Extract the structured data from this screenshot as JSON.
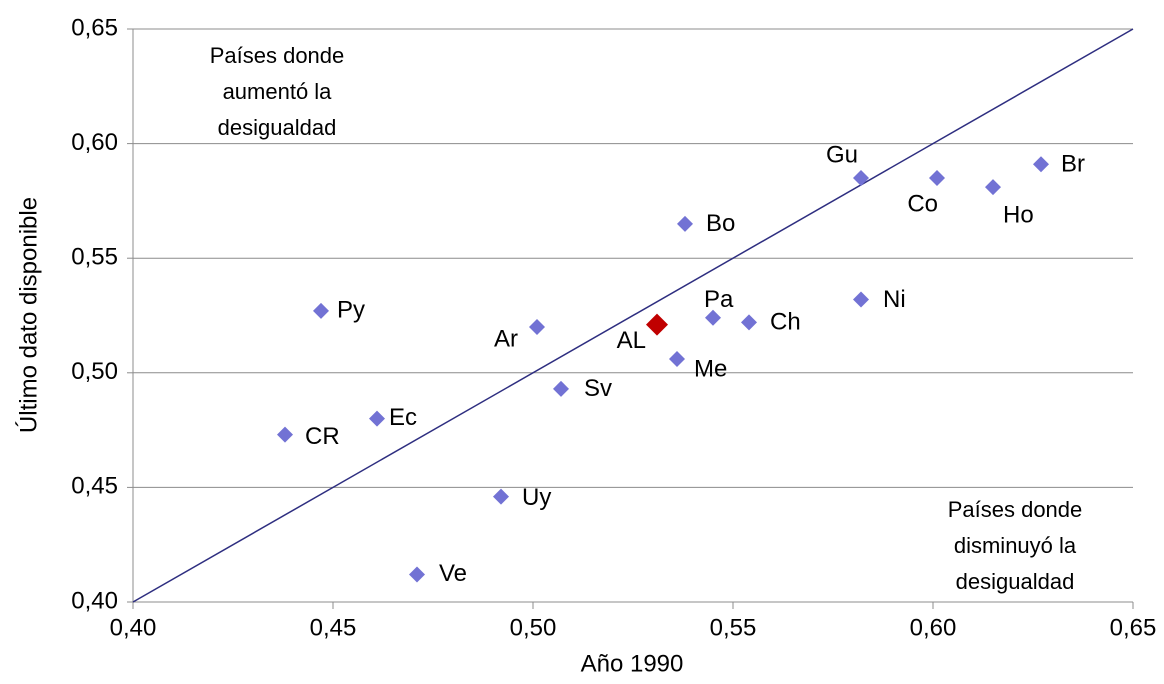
{
  "chart_data": {
    "type": "scatter",
    "x_label": "Año 1990",
    "y_label": "Último dato disponible",
    "labels": [
      "Py",
      "CR",
      "Ec",
      "Ve",
      "Uy",
      "Ar",
      "Sv",
      "AL",
      "Me",
      "Bo",
      "Pa",
      "Ch",
      "Gu",
      "Ni",
      "Co",
      "Ho",
      "Br"
    ],
    "x": [
      0.447,
      0.438,
      0.461,
      0.471,
      0.492,
      0.501,
      0.507,
      0.531,
      0.536,
      0.538,
      0.545,
      0.554,
      0.582,
      0.582,
      0.601,
      0.615,
      0.627
    ],
    "y": [
      0.527,
      0.473,
      0.48,
      0.412,
      0.446,
      0.52,
      0.493,
      0.521,
      0.506,
      0.565,
      0.524,
      0.522,
      0.585,
      0.532,
      0.585,
      0.581,
      0.591
    ],
    "colors": [
      "#7272d4",
      "#7272d4",
      "#7272d4",
      "#7272d4",
      "#7272d4",
      "#7272d4",
      "#7272d4",
      "#c00000",
      "#7272d4",
      "#7272d4",
      "#7272d4",
      "#7272d4",
      "#7272d4",
      "#7272d4",
      "#7272d4",
      "#7272d4",
      "#7272d4"
    ],
    "reference_line": {
      "x": [
        0.4,
        0.65
      ],
      "y": [
        0.4,
        0.65
      ],
      "color": "#2e2e80"
    },
    "annotations": [
      [
        "Países donde",
        "aumentó la",
        "desigualdad"
      ],
      [
        "Países donde",
        "disminuyó la",
        "desigualdad"
      ]
    ],
    "xlim": [
      0.4,
      0.65
    ],
    "ylim": [
      0.4,
      0.65
    ],
    "xticks": [
      {
        "value": 0.4,
        "label": "0,40"
      },
      {
        "value": 0.45,
        "label": "0,45"
      },
      {
        "value": 0.5,
        "label": "0,50"
      },
      {
        "value": 0.55,
        "label": "0,55"
      },
      {
        "value": 0.6,
        "label": "0,60"
      },
      {
        "value": 0.65,
        "label": "0,65"
      }
    ],
    "yticks": [
      {
        "value": 0.4,
        "label": "0,40"
      },
      {
        "value": 0.45,
        "label": "0,45"
      },
      {
        "value": 0.5,
        "label": "0,50"
      },
      {
        "value": 0.55,
        "label": "0,55"
      },
      {
        "value": 0.6,
        "label": "0,60"
      },
      {
        "value": 0.65,
        "label": "0,65"
      }
    ],
    "grid": true
  }
}
